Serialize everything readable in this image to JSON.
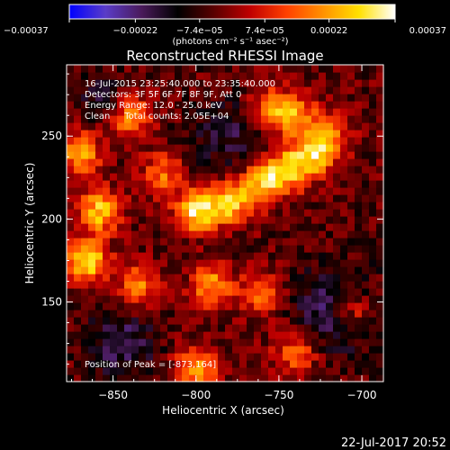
{
  "chart_data": {
    "type": "heatmap",
    "title": "Reconstructed RHESSI Image",
    "xlabel": "Heliocentric X (arcsec)",
    "ylabel": "Heliocentric Y (arcsec)",
    "xlim": [
      -878,
      -687
    ],
    "ylim": [
      102,
      293
    ],
    "x_ticks": [
      -850,
      -800,
      -750,
      -700
    ],
    "x_tick_labels": [
      "−850",
      "−800",
      "−750",
      "−700"
    ],
    "y_ticks": [
      150,
      200,
      250
    ],
    "y_tick_labels": [
      "150",
      "200",
      "250"
    ],
    "colorbar": {
      "min": -0.00037,
      "max": 0.00037,
      "ticks": [
        -0.00037,
        -0.00022,
        -7.4e-05,
        7.4e-05,
        0.00022,
        0.00037
      ],
      "tick_labels": [
        "−0.00037",
        "−0.00022",
        "−7.4e−05",
        "7.4e−05",
        "0.00022",
        "0.00037"
      ],
      "units_label": "(photons cm⁻² s⁻¹ asec⁻²)",
      "colormap": [
        "#0000ff",
        "#5a3cc8",
        "#4a1a5a",
        "#000000",
        "#5a0000",
        "#c00000",
        "#ff4000",
        "#ff9000",
        "#ffe000",
        "#ffffff"
      ]
    },
    "annotations": {
      "time_range": "16-Jul-2015 23:25:40.000 to 23:35:40.000",
      "detectors": "Detectors: 3F 5F 6F 7F 8F 9F, Att 0",
      "energy": "Energy Range: 12.0 - 25.0 keV",
      "method": "Clean     Total counts: 2.05E+04",
      "peak": "Position of Peak = [-873,164]"
    },
    "peak_position": [
      -873,
      164
    ],
    "emission_sources": [
      {
        "x": -866,
        "y": 175,
        "strength": 1.0
      },
      {
        "x": -858,
        "y": 205,
        "strength": 0.85
      },
      {
        "x": -870,
        "y": 240,
        "strength": 0.75
      },
      {
        "x": -840,
        "y": 262,
        "strength": 0.7
      },
      {
        "x": -800,
        "y": 205,
        "strength": 0.95
      },
      {
        "x": -780,
        "y": 210,
        "strength": 0.85
      },
      {
        "x": -760,
        "y": 222,
        "strength": 0.8
      },
      {
        "x": -745,
        "y": 230,
        "strength": 0.75
      },
      {
        "x": -730,
        "y": 238,
        "strength": 0.7
      },
      {
        "x": -720,
        "y": 250,
        "strength": 0.6
      },
      {
        "x": -740,
        "y": 262,
        "strength": 0.65
      },
      {
        "x": -755,
        "y": 268,
        "strength": 0.6
      },
      {
        "x": -820,
        "y": 228,
        "strength": 0.55
      },
      {
        "x": -835,
        "y": 160,
        "strength": 0.6
      },
      {
        "x": -790,
        "y": 160,
        "strength": 0.7
      },
      {
        "x": -760,
        "y": 155,
        "strength": 0.55
      },
      {
        "x": -800,
        "y": 110,
        "strength": 0.75
      },
      {
        "x": -740,
        "y": 120,
        "strength": 0.6
      },
      {
        "x": -705,
        "y": 145,
        "strength": 0.55
      }
    ]
  },
  "footer": {
    "timestamp": "22-Jul-2017 20:52"
  }
}
